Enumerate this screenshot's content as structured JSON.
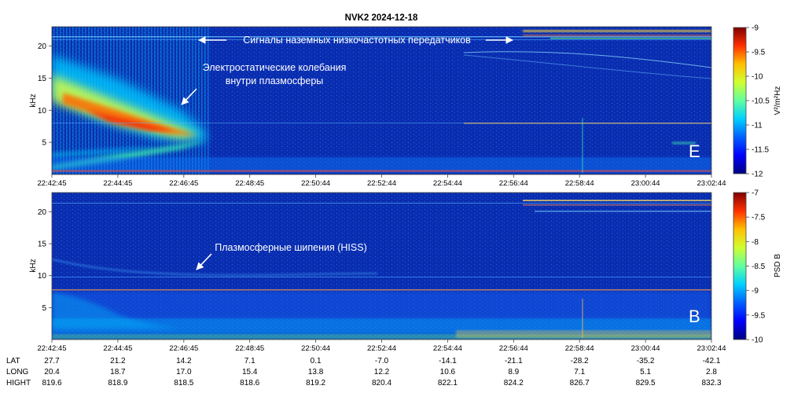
{
  "title": "NVK2 2024-12-18",
  "colors": {
    "colormap": [
      "#00007f",
      "#0000ff",
      "#007fff",
      "#00ffff",
      "#7fff7f",
      "#ffff00",
      "#ff7f00",
      "#ff0000",
      "#7f0000"
    ],
    "annotation": "#ffffff"
  },
  "chart_data": [
    {
      "type": "heatmap",
      "panel_label": "E",
      "ylabel": "kHz",
      "yticks": [
        5,
        10,
        15,
        20
      ],
      "ylim": [
        0,
        23
      ],
      "xticks": [
        "22:42:45",
        "22:44:45",
        "22:46:45",
        "22:48:45",
        "22:50:44",
        "22:52:44",
        "22:54:44",
        "22:56:44",
        "22:58:44",
        "23:00:44",
        "23:02:44"
      ],
      "colorbar": {
        "label": "V²/m²Hz",
        "ticks": [
          "-9",
          "-9.5",
          "-10",
          "-10.5",
          "-11",
          "-11.5",
          "-12"
        ],
        "range": [
          -12,
          -9
        ]
      },
      "annotations": [
        {
          "text": "Сигналы наземных низкочастотных передатчиков",
          "freq_khz": 21.3,
          "arrows": "both"
        },
        {
          "text": "Электростатические колебания",
          "freq_khz": 16.7
        },
        {
          "text": "внутри плазмосферы",
          "freq_khz": 14.6
        }
      ]
    },
    {
      "type": "heatmap",
      "panel_label": "B",
      "ylabel": "kHz",
      "yticks": [
        5,
        10,
        15,
        20
      ],
      "ylim": [
        0,
        23
      ],
      "xticks": [
        "22:42:45",
        "22:44:45",
        "22:46:45",
        "22:48:45",
        "22:50:44",
        "22:52:44",
        "22:54:44",
        "22:56:44",
        "22:58:44",
        "23:00:44",
        "23:02:44"
      ],
      "colorbar": {
        "label": "PSD B",
        "ticks": [
          "-7",
          "-7.5",
          "-8",
          "-8.5",
          "-9",
          "-9.5",
          "-10"
        ],
        "range": [
          -10,
          -7
        ]
      },
      "annotations": [
        {
          "text": "Плазмосферные шипения (HISS)",
          "freq_khz": 15.0
        }
      ]
    }
  ],
  "ephemeris": {
    "rows": [
      {
        "label": "LAT",
        "values": [
          "27.7",
          "21.2",
          "14.2",
          "7.1",
          "0.1",
          "-7.0",
          "-14.1",
          "-21.1",
          "-28.2",
          "-35.2",
          "-42.1"
        ]
      },
      {
        "label": "LONG",
        "values": [
          "20.4",
          "18.7",
          "17.0",
          "15.4",
          "13.8",
          "12.2",
          "10.6",
          "8.9",
          "7.1",
          "5.1",
          "2.8"
        ]
      },
      {
        "label": "HIGHT",
        "values": [
          "819.6",
          "818.9",
          "818.5",
          "818.6",
          "819.2",
          "820.4",
          "822.1",
          "824.2",
          "826.7",
          "829.5",
          "832.3"
        ]
      }
    ]
  }
}
